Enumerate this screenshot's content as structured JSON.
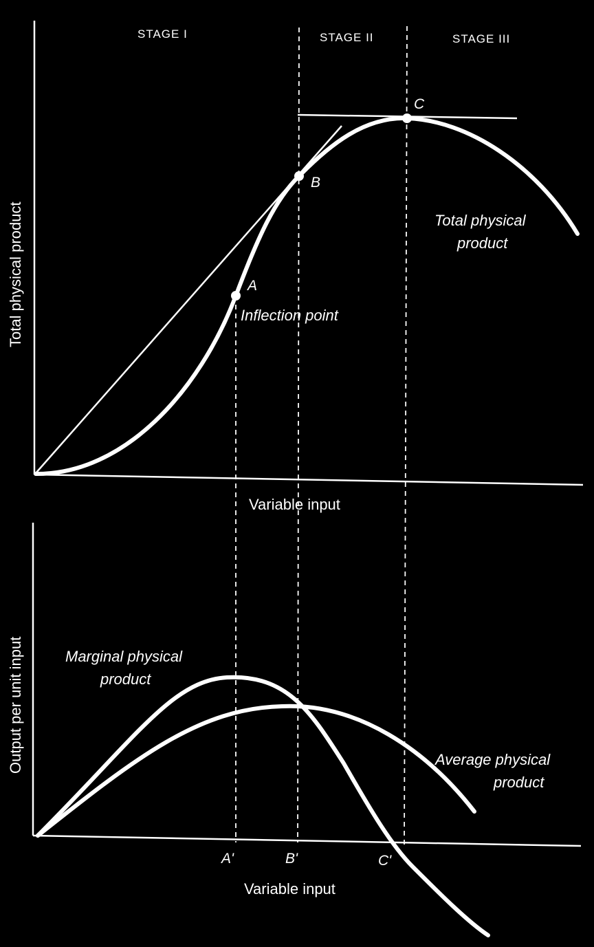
{
  "stages": [
    "STAGE I",
    "STAGE II",
    "STAGE III"
  ],
  "top_panel": {
    "y_axis_label": "Total physical product",
    "x_axis_label": "Variable input",
    "curve_label_line1": "Total physical product",
    "curve_label_line2": "",
    "points": {
      "A": "A",
      "B": "B",
      "C": "C"
    },
    "inflection_label": "Inflection point"
  },
  "bottom_panel": {
    "y_axis_label": "Output per unit input",
    "x_axis_label": "Variable input",
    "mpp_label_line1": "Marginal physical",
    "mpp_label_line2": "product",
    "app_label_line1": "Average physical",
    "app_label_line2": "product",
    "ticks": {
      "A": "A'",
      "B": "B'",
      "C": "C'"
    }
  },
  "colors": {
    "background": "#000000",
    "foreground": "#ffffff"
  }
}
